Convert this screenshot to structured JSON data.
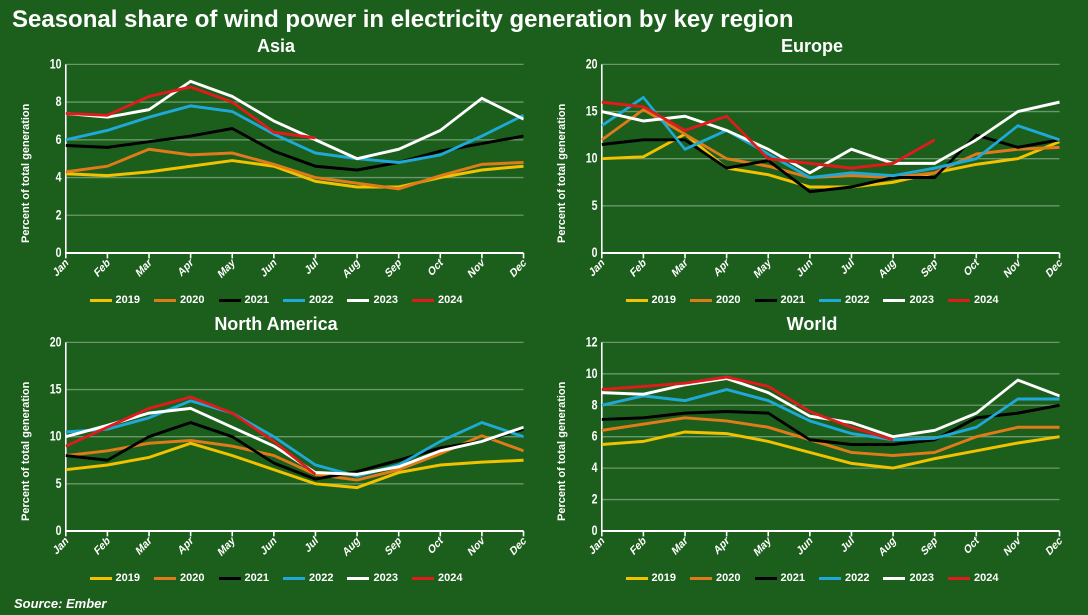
{
  "title": "Seasonal share of wind power in electricity generation by key region",
  "source": "Source: Ember",
  "background_color": "#1c5e1c",
  "text_color": "#ffffff",
  "grid_color": "#6a986a",
  "axis_color": "#ffffff",
  "line_width": 2.2,
  "title_fontsize": 24,
  "panel_title_fontsize": 18,
  "ylabel_fontsize": 11,
  "tick_fontsize": 10,
  "legend_fontsize": 11,
  "months": [
    "Jan",
    "Feb",
    "Mar",
    "Apr",
    "May",
    "Jun",
    "Jul",
    "Aug",
    "Sep",
    "Oct",
    "Nov",
    "Dec"
  ],
  "series_meta": [
    {
      "name": "2019",
      "color": "#f2c200"
    },
    {
      "name": "2020",
      "color": "#e07b1a"
    },
    {
      "name": "2021",
      "color": "#000000"
    },
    {
      "name": "2022",
      "color": "#1fa8d8"
    },
    {
      "name": "2023",
      "color": "#ffffff"
    },
    {
      "name": "2024",
      "color": "#e01b1b"
    }
  ],
  "panels": [
    {
      "id": "asia",
      "title": "Asia",
      "ylabel": "Percent of total generation",
      "ylim": [
        0,
        10
      ],
      "ytick_step": 2,
      "series": {
        "2019": [
          4.2,
          4.1,
          4.3,
          4.6,
          4.9,
          4.6,
          3.8,
          3.5,
          3.5,
          4.0,
          4.4,
          4.6
        ],
        "2020": [
          4.3,
          4.6,
          5.5,
          5.2,
          5.3,
          4.7,
          4.0,
          3.7,
          3.4,
          4.1,
          4.7,
          4.8
        ],
        "2021": [
          5.7,
          5.6,
          5.9,
          6.2,
          6.6,
          5.4,
          4.6,
          4.4,
          4.8,
          5.4,
          5.8,
          6.2
        ],
        "2022": [
          6.0,
          6.5,
          7.2,
          7.8,
          7.5,
          6.3,
          5.3,
          5.0,
          4.8,
          5.2,
          6.2,
          7.3
        ],
        "2023": [
          7.4,
          7.2,
          7.6,
          9.1,
          8.3,
          7.0,
          6.0,
          5.0,
          5.5,
          6.5,
          8.2,
          7.1
        ],
        "2024": [
          7.4,
          7.3,
          8.3,
          8.8,
          8.0,
          6.4,
          6.1,
          null,
          null,
          null,
          null,
          null
        ]
      }
    },
    {
      "id": "europe",
      "title": "Europe",
      "ylabel": "Percent of total generation",
      "ylim": [
        0,
        20
      ],
      "ytick_step": 5,
      "series": {
        "2019": [
          10.0,
          10.2,
          12.6,
          9.0,
          8.3,
          7.0,
          7.0,
          7.5,
          8.5,
          9.4,
          10.0,
          11.8
        ],
        "2020": [
          12.0,
          15.2,
          12.6,
          10.0,
          9.2,
          8.0,
          8.2,
          8.0,
          8.5,
          10.5,
          11.0,
          11.2
        ],
        "2021": [
          11.5,
          12.0,
          12.0,
          9.0,
          9.8,
          6.5,
          7.0,
          8.0,
          8.0,
          12.5,
          11.2,
          12.0
        ],
        "2022": [
          13.5,
          16.5,
          11.0,
          13.0,
          10.5,
          8.0,
          8.5,
          8.2,
          9.0,
          10.0,
          13.5,
          12.0
        ],
        "2023": [
          15.0,
          14.0,
          14.5,
          13.0,
          11.0,
          8.5,
          11.0,
          9.5,
          9.5,
          12.0,
          15.0,
          16.0
        ],
        "2024": [
          16.0,
          15.5,
          13.0,
          14.5,
          10.0,
          9.5,
          9.0,
          9.5,
          12.0,
          null,
          null,
          null
        ]
      }
    },
    {
      "id": "na",
      "title": "North America",
      "ylabel": "Percent of total generation",
      "ylim": [
        0,
        20
      ],
      "ytick_step": 5,
      "series": {
        "2019": [
          6.5,
          7.0,
          7.8,
          9.3,
          8.0,
          6.5,
          5.0,
          4.6,
          6.2,
          7.0,
          7.3,
          7.5
        ],
        "2020": [
          8.0,
          8.5,
          9.3,
          9.6,
          9.0,
          8.0,
          6.0,
          5.4,
          6.5,
          8.2,
          10.1,
          8.5
        ],
        "2021": [
          8.0,
          7.5,
          10.0,
          11.5,
          10.0,
          7.2,
          5.5,
          6.3,
          7.5,
          8.8,
          9.5,
          10.8
        ],
        "2022": [
          10.5,
          10.8,
          12.0,
          13.8,
          12.5,
          10.0,
          7.0,
          5.8,
          7.0,
          9.5,
          11.5,
          10.0
        ],
        "2023": [
          10.0,
          11.2,
          12.5,
          13.0,
          11.0,
          9.0,
          6.2,
          6.0,
          6.8,
          8.5,
          9.5,
          11.0
        ],
        "2024": [
          9.0,
          11.0,
          13.0,
          14.2,
          12.5,
          9.5,
          6.0,
          null,
          null,
          null,
          null,
          null
        ]
      }
    },
    {
      "id": "world",
      "title": "World",
      "ylabel": "Percent of total generation",
      "ylim": [
        0,
        12
      ],
      "ytick_step": 2,
      "series": {
        "2019": [
          5.5,
          5.7,
          6.3,
          6.2,
          5.7,
          5.0,
          4.3,
          4.0,
          4.6,
          5.1,
          5.6,
          6.0
        ],
        "2020": [
          6.4,
          6.8,
          7.2,
          7.0,
          6.6,
          5.8,
          5.0,
          4.8,
          5.0,
          6.0,
          6.6,
          6.6
        ],
        "2021": [
          7.1,
          7.2,
          7.5,
          7.6,
          7.5,
          5.8,
          5.5,
          5.5,
          5.8,
          7.2,
          7.5,
          8.0
        ],
        "2022": [
          8.0,
          8.6,
          8.3,
          9.0,
          8.3,
          7.0,
          6.2,
          5.8,
          5.9,
          6.6,
          8.4,
          8.4
        ],
        "2023": [
          8.8,
          8.7,
          9.3,
          9.7,
          8.8,
          7.3,
          6.9,
          6.0,
          6.4,
          7.5,
          9.6,
          8.6
        ],
        "2024": [
          9.0,
          9.2,
          9.4,
          9.8,
          9.2,
          7.6,
          6.6,
          5.8,
          null,
          null,
          null,
          null
        ]
      }
    }
  ]
}
